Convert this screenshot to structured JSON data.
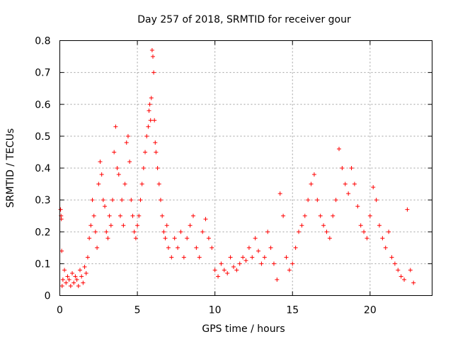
{
  "chart_data": {
    "type": "scatter",
    "title": "Day 257 of 2018, SRMTID for receiver gour",
    "xlabel": "GPS time / hours",
    "ylabel": "SRMTID / TECUs",
    "xlim": [
      0,
      24
    ],
    "ylim": [
      0,
      0.8
    ],
    "x_ticks": [
      0,
      5,
      10,
      15,
      20
    ],
    "x_tick_labels": [
      "0",
      "5",
      "10",
      "15",
      "20"
    ],
    "y_ticks": [
      0,
      0.1,
      0.2,
      0.3,
      0.4,
      0.5,
      0.6,
      0.7,
      0.8
    ],
    "y_tick_labels": [
      "0",
      "0.1",
      "0.2",
      "0.3",
      "0.4",
      "0.5",
      "0.6",
      "0.7",
      "0.8"
    ],
    "grid": true,
    "marker": "+",
    "color": "#ff0000",
    "series": [
      {
        "name": "SRMTID",
        "x": [
          0.05,
          0.08,
          0.1,
          0.12,
          0.15,
          0.2,
          0.3,
          0.4,
          0.5,
          0.6,
          0.7,
          0.8,
          0.9,
          1.0,
          1.1,
          1.2,
          1.3,
          1.4,
          1.5,
          1.6,
          1.7,
          1.8,
          1.9,
          2.0,
          2.1,
          2.2,
          2.3,
          2.4,
          2.5,
          2.6,
          2.7,
          2.8,
          2.9,
          3.0,
          3.1,
          3.2,
          3.3,
          3.4,
          3.5,
          3.6,
          3.7,
          3.8,
          3.9,
          4.0,
          4.1,
          4.2,
          4.3,
          4.4,
          4.5,
          4.6,
          4.7,
          4.8,
          4.9,
          5.0,
          5.1,
          5.2,
          5.3,
          5.4,
          5.5,
          5.6,
          5.7,
          5.75,
          5.8,
          5.85,
          5.9,
          5.95,
          6.0,
          6.05,
          6.1,
          6.15,
          6.2,
          6.3,
          6.4,
          6.5,
          6.6,
          6.7,
          6.8,
          6.9,
          7.0,
          7.2,
          7.4,
          7.6,
          7.8,
          8.0,
          8.2,
          8.4,
          8.6,
          8.8,
          9.0,
          9.2,
          9.4,
          9.6,
          9.8,
          10.0,
          10.2,
          10.4,
          10.6,
          10.8,
          11.0,
          11.2,
          11.4,
          11.6,
          11.8,
          12.0,
          12.2,
          12.4,
          12.6,
          12.8,
          13.0,
          13.2,
          13.4,
          13.6,
          13.8,
          14.0,
          14.2,
          14.4,
          14.6,
          14.8,
          15.0,
          15.2,
          15.4,
          15.6,
          15.8,
          16.0,
          16.2,
          16.4,
          16.6,
          16.8,
          17.0,
          17.2,
          17.4,
          17.6,
          17.8,
          18.0,
          18.2,
          18.4,
          18.6,
          18.8,
          19.0,
          19.2,
          19.4,
          19.6,
          19.8,
          20.0,
          20.2,
          20.4,
          20.6,
          20.8,
          21.0,
          21.2,
          21.4,
          21.6,
          21.8,
          22.0,
          22.2,
          22.4,
          22.6,
          22.8
        ],
        "y": [
          0.27,
          0.25,
          0.24,
          0.14,
          0.03,
          0.05,
          0.08,
          0.04,
          0.06,
          0.05,
          0.03,
          0.07,
          0.04,
          0.06,
          0.05,
          0.03,
          0.08,
          0.06,
          0.04,
          0.09,
          0.07,
          0.12,
          0.18,
          0.22,
          0.3,
          0.25,
          0.2,
          0.15,
          0.35,
          0.42,
          0.38,
          0.3,
          0.28,
          0.2,
          0.18,
          0.25,
          0.22,
          0.3,
          0.45,
          0.53,
          0.4,
          0.38,
          0.25,
          0.3,
          0.22,
          0.35,
          0.48,
          0.5,
          0.42,
          0.3,
          0.25,
          0.2,
          0.18,
          0.22,
          0.25,
          0.3,
          0.35,
          0.4,
          0.45,
          0.5,
          0.53,
          0.58,
          0.6,
          0.55,
          0.62,
          0.77,
          0.75,
          0.7,
          0.55,
          0.48,
          0.45,
          0.4,
          0.35,
          0.3,
          0.25,
          0.2,
          0.18,
          0.22,
          0.15,
          0.12,
          0.18,
          0.15,
          0.2,
          0.12,
          0.18,
          0.22,
          0.25,
          0.15,
          0.12,
          0.2,
          0.24,
          0.18,
          0.15,
          0.08,
          0.06,
          0.1,
          0.08,
          0.07,
          0.12,
          0.09,
          0.08,
          0.1,
          0.12,
          0.11,
          0.15,
          0.12,
          0.18,
          0.14,
          0.1,
          0.12,
          0.2,
          0.15,
          0.1,
          0.05,
          0.32,
          0.25,
          0.12,
          0.08,
          0.1,
          0.15,
          0.2,
          0.22,
          0.25,
          0.3,
          0.35,
          0.38,
          0.3,
          0.25,
          0.22,
          0.2,
          0.18,
          0.25,
          0.3,
          0.46,
          0.4,
          0.35,
          0.32,
          0.4,
          0.35,
          0.28,
          0.22,
          0.2,
          0.18,
          0.25,
          0.34,
          0.3,
          0.22,
          0.18,
          0.15,
          0.2,
          0.12,
          0.1,
          0.08,
          0.06,
          0.05,
          0.27,
          0.08,
          0.04
        ]
      }
    ]
  }
}
